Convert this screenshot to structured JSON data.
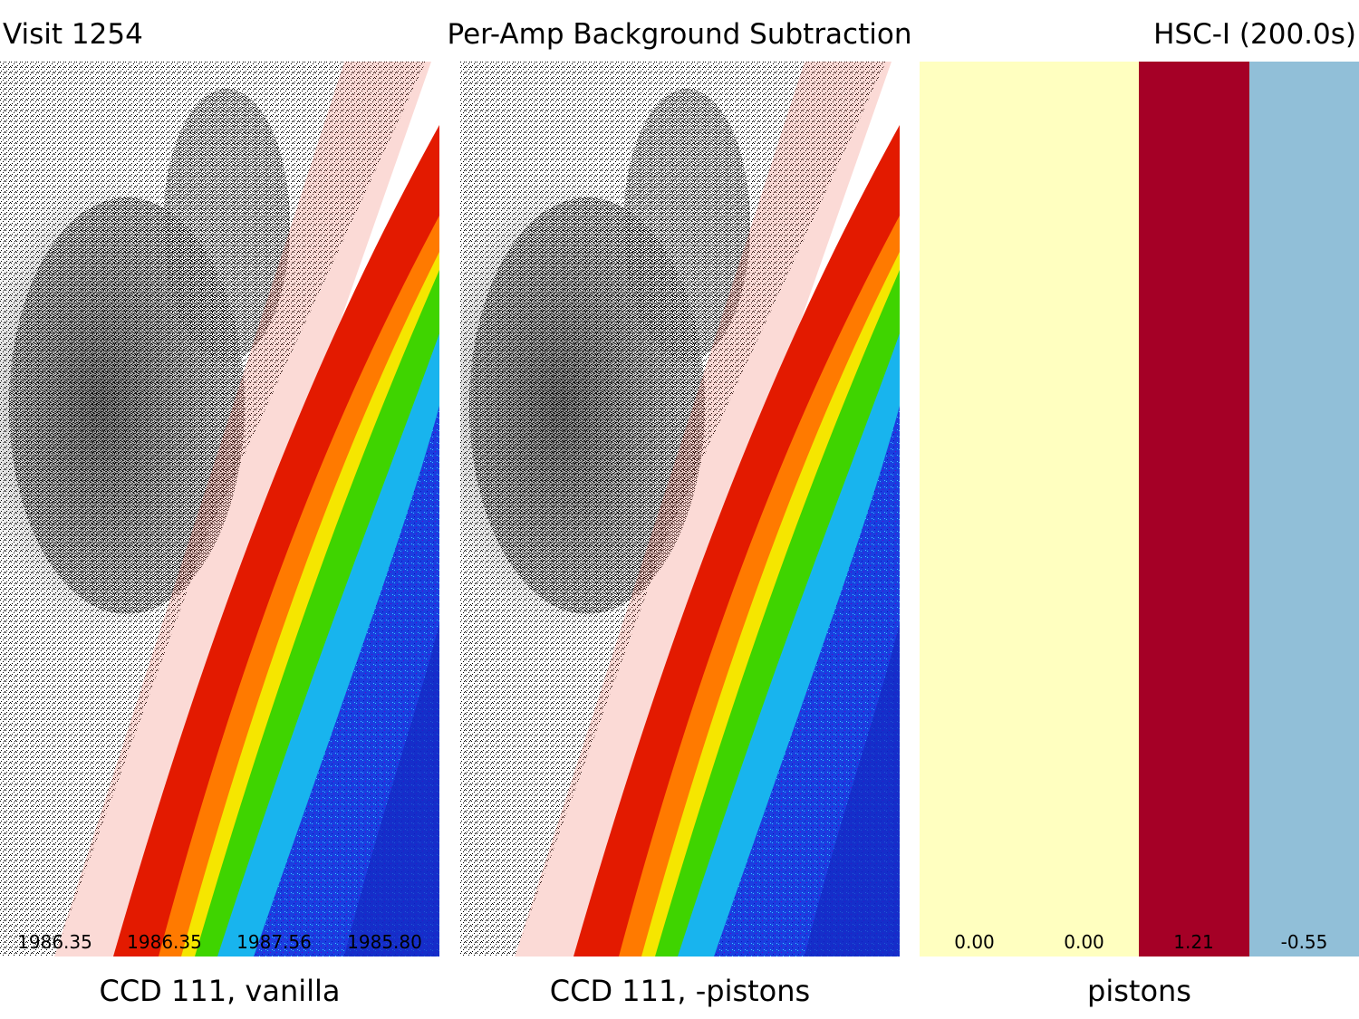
{
  "header": {
    "visit": "Visit 1254",
    "title": "Per-Amp Background Subtraction",
    "band": "HSC-I (200.0s)"
  },
  "panels": [
    {
      "caption": "CCD 111, vanilla",
      "amp_values": [
        "1986.35",
        "1986.35",
        "1987.56",
        "1985.80"
      ]
    },
    {
      "caption": "CCD 111, -pistons",
      "amp_values": []
    },
    {
      "caption": "pistons",
      "amp_values": [
        "0.00",
        "0.00",
        "1.21",
        "-0.55"
      ],
      "amp_colors": [
        "#ffffc0",
        "#ffffc0",
        "#a50026",
        "#91bfd8"
      ]
    }
  ],
  "colors": {
    "background": "#ffffff",
    "map_red": "#e31a00",
    "map_orange": "#ff8000",
    "map_green": "#3fd400",
    "map_cyan": "#18b4ee",
    "map_blue": "#1428d8",
    "map_noise": "#000000"
  }
}
